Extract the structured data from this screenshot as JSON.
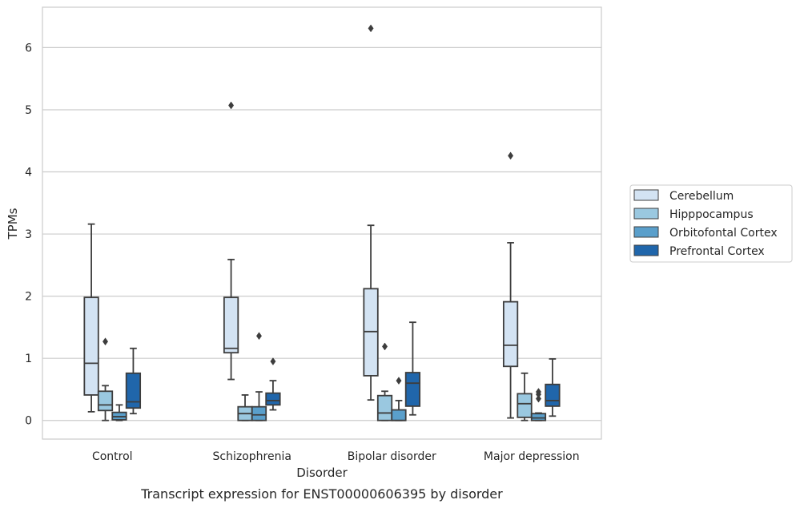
{
  "chart_data": {
    "type": "box",
    "caption": "Transcript expression for ENST00000606395 by disorder",
    "xlabel": "Disorder",
    "ylabel": "TPMs",
    "ylim": [
      -0.3,
      6.65
    ],
    "yticks": [
      0,
      1,
      2,
      3,
      4,
      5,
      6
    ],
    "grid": "horizontal",
    "legend_position": "right",
    "categories": [
      "Control",
      "Schizophrenia",
      "Bipolar disorder",
      "Major depression"
    ],
    "series": [
      {
        "name": "Cerebellum",
        "color": "#d3e3f3",
        "boxes": [
          {
            "whislo": 0.14,
            "q1": 0.41,
            "med": 0.92,
            "q3": 1.98,
            "whishi": 3.16,
            "fliers": []
          },
          {
            "whislo": 0.66,
            "q1": 1.09,
            "med": 1.16,
            "q3": 1.98,
            "whishi": 2.59,
            "fliers": [
              5.07
            ]
          },
          {
            "whislo": 0.33,
            "q1": 0.72,
            "med": 1.43,
            "q3": 2.12,
            "whishi": 3.14,
            "fliers": [
              6.31
            ]
          },
          {
            "whislo": 0.04,
            "q1": 0.87,
            "med": 1.21,
            "q3": 1.91,
            "whishi": 2.86,
            "fliers": [
              4.26
            ]
          }
        ]
      },
      {
        "name": "Hipppocampus",
        "color": "#9ac8e0",
        "boxes": [
          {
            "whislo": 0.0,
            "q1": 0.16,
            "med": 0.25,
            "q3": 0.47,
            "whishi": 0.56,
            "fliers": [
              1.27
            ]
          },
          {
            "whislo": 0.0,
            "q1": 0.0,
            "med": 0.11,
            "q3": 0.22,
            "whishi": 0.41,
            "fliers": []
          },
          {
            "whislo": 0.0,
            "q1": 0.0,
            "med": 0.12,
            "q3": 0.4,
            "whishi": 0.47,
            "fliers": [
              1.19
            ]
          },
          {
            "whislo": 0.0,
            "q1": 0.05,
            "med": 0.27,
            "q3": 0.43,
            "whishi": 0.76,
            "fliers": []
          }
        ]
      },
      {
        "name": "Orbitofontal Cortex",
        "color": "#5a9fcb",
        "boxes": [
          {
            "whislo": 0.0,
            "q1": 0.01,
            "med": 0.06,
            "q3": 0.13,
            "whishi": 0.25,
            "fliers": []
          },
          {
            "whislo": 0.0,
            "q1": 0.0,
            "med": 0.09,
            "q3": 0.22,
            "whishi": 0.46,
            "fliers": [
              1.36
            ]
          },
          {
            "whislo": 0.0,
            "q1": 0.0,
            "med": 0.0,
            "q3": 0.17,
            "whishi": 0.32,
            "fliers": [
              0.64
            ]
          },
          {
            "whislo": 0.0,
            "q1": 0.0,
            "med": 0.04,
            "q3": 0.11,
            "whishi": 0.12,
            "fliers": [
              0.35,
              0.42,
              0.46
            ]
          }
        ]
      },
      {
        "name": "Prefrontal Cortex",
        "color": "#2066ab",
        "boxes": [
          {
            "whislo": 0.11,
            "q1": 0.2,
            "med": 0.3,
            "q3": 0.76,
            "whishi": 1.16,
            "fliers": []
          },
          {
            "whislo": 0.17,
            "q1": 0.25,
            "med": 0.32,
            "q3": 0.44,
            "whishi": 0.64,
            "fliers": [
              0.95
            ]
          },
          {
            "whislo": 0.09,
            "q1": 0.23,
            "med": 0.6,
            "q3": 0.77,
            "whishi": 1.58,
            "fliers": []
          },
          {
            "whislo": 0.07,
            "q1": 0.23,
            "med": 0.32,
            "q3": 0.58,
            "whishi": 0.99,
            "fliers": []
          }
        ]
      }
    ]
  }
}
